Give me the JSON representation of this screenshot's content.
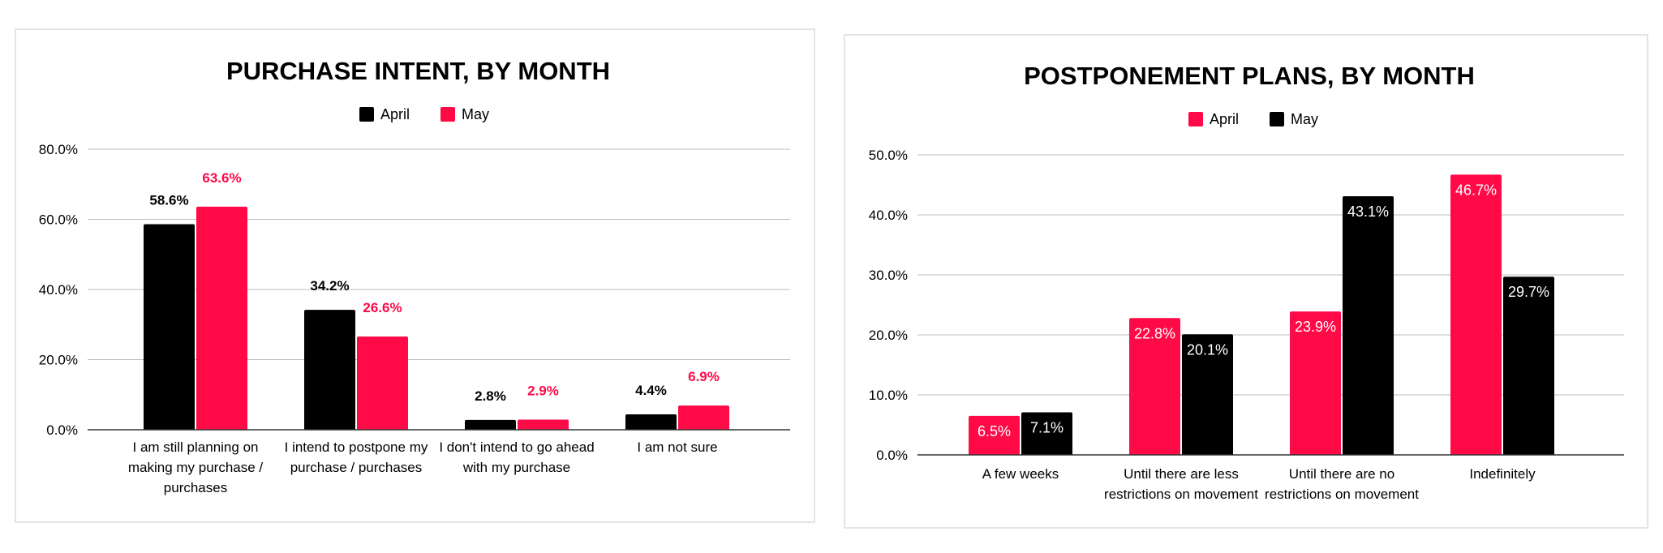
{
  "chart_data": [
    {
      "type": "bar",
      "title": "PURCHASE INTENT, BY MONTH",
      "categories": [
        "I am still planning on making my purchase / purchases",
        "I intend to postpone my purchase / purchases",
        "I don't intend to go ahead with my purchase",
        "I am not sure"
      ],
      "category_lines": [
        [
          "I am still planning on",
          "making my purchase /",
          "purchases"
        ],
        [
          "I intend to postpone my",
          "purchase / purchases"
        ],
        [
          "I don't intend to go ahead",
          "with my purchase"
        ],
        [
          "I am not sure"
        ]
      ],
      "series": [
        {
          "name": "April",
          "color": "#000000",
          "values": [
            58.6,
            34.2,
            2.8,
            4.4
          ],
          "labels": [
            "58.6%",
            "34.2%",
            "2.8%",
            "4.4%"
          ]
        },
        {
          "name": "May",
          "color": "#ff0a47",
          "values": [
            63.6,
            26.6,
            2.9,
            6.9
          ],
          "labels": [
            "63.6%",
            "26.6%",
            "2.9%",
            "6.9%"
          ]
        }
      ],
      "ylim": [
        0,
        80
      ],
      "yticks": [
        0,
        20,
        40,
        60,
        80
      ],
      "ytick_labels": [
        "0.0%",
        "20.0%",
        "40.0%",
        "60.0%",
        "80.0%"
      ],
      "grid": true,
      "legend": "top-center",
      "data_labels": "above-bars"
    },
    {
      "type": "bar",
      "title": "POSTPONEMENT PLANS, BY MONTH",
      "categories": [
        "A few weeks",
        "Until there are less restrictions on movement",
        "Until there are no restrictions on movement",
        "Indefinitely"
      ],
      "category_lines": [
        [
          "A few weeks"
        ],
        [
          "Until there are less",
          "restrictions on movement"
        ],
        [
          "Until there are no",
          "restrictions on movement"
        ],
        [
          "Indefinitely"
        ]
      ],
      "series": [
        {
          "name": "April",
          "color": "#ff0a47",
          "values": [
            6.5,
            22.8,
            23.9,
            46.7
          ],
          "labels": [
            "6.5%",
            "22.8%",
            "23.9%",
            "46.7%"
          ]
        },
        {
          "name": "May",
          "color": "#000000",
          "values": [
            7.1,
            20.1,
            43.1,
            29.7
          ],
          "labels": [
            "7.1%",
            "20.1%",
            "43.1%",
            "29.7%"
          ]
        }
      ],
      "ylim": [
        0,
        50
      ],
      "yticks": [
        0,
        10,
        20,
        30,
        40,
        50
      ],
      "ytick_labels": [
        "0.0%",
        "10.0%",
        "20.0%",
        "30.0%",
        "40.0%",
        "50.0%"
      ],
      "grid": true,
      "legend": "top-center",
      "data_labels": "inside-top"
    }
  ]
}
